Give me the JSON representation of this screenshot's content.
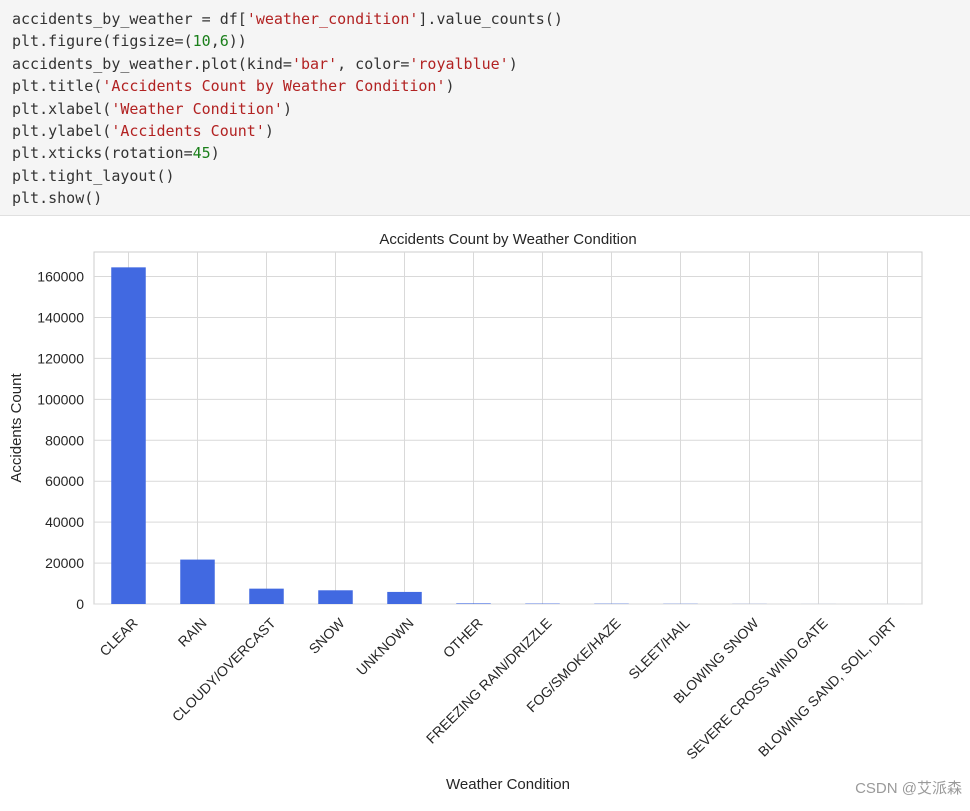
{
  "code": {
    "lines": [
      [
        [
          "t",
          "accidents_by_weather = df["
        ],
        [
          "s",
          "'weather_condition'"
        ],
        [
          "t",
          "].value_counts()"
        ]
      ],
      [
        [
          "t",
          "plt.figure(figsize=("
        ],
        [
          "n",
          "10"
        ],
        [
          "t",
          ","
        ],
        [
          "n",
          "6"
        ],
        [
          "t",
          "))"
        ]
      ],
      [
        [
          "t",
          "accidents_by_weather.plot(kind="
        ],
        [
          "s",
          "'bar'"
        ],
        [
          "t",
          ", color="
        ],
        [
          "s",
          "'royalblue'"
        ],
        [
          "t",
          ")"
        ]
      ],
      [
        [
          "t",
          "plt.title("
        ],
        [
          "s",
          "'Accidents Count by Weather Condition'"
        ],
        [
          "t",
          ")"
        ]
      ],
      [
        [
          "t",
          "plt.xlabel("
        ],
        [
          "s",
          "'Weather Condition'"
        ],
        [
          "t",
          ")"
        ]
      ],
      [
        [
          "t",
          "plt.ylabel("
        ],
        [
          "s",
          "'Accidents Count'"
        ],
        [
          "t",
          ")"
        ]
      ],
      [
        [
          "t",
          "plt.xticks(rotation="
        ],
        [
          "n",
          "45"
        ],
        [
          "t",
          ")"
        ]
      ],
      [
        [
          "t",
          "plt.tight_layout()"
        ]
      ],
      [
        [
          "t",
          "plt.show()"
        ]
      ]
    ]
  },
  "chart_data": {
    "type": "bar",
    "title": "Accidents Count by Weather Condition",
    "xlabel": "Weather Condition",
    "ylabel": "Accidents Count",
    "categories": [
      "CLEAR",
      "RAIN",
      "CLOUDY/OVERCAST",
      "SNOW",
      "UNKNOWN",
      "OTHER",
      "FREEZING RAIN/DRIZZLE",
      "FOG/SMOKE/HAZE",
      "SLEET/HAIL",
      "BLOWING SNOW",
      "SEVERE CROSS WIND GATE",
      "BLOWING SAND, SOIL, DIRT"
    ],
    "values": [
      164500,
      21700,
      7500,
      6700,
      5900,
      300,
      200,
      150,
      100,
      50,
      20,
      10
    ],
    "ylim": [
      0,
      172000
    ],
    "yticks": [
      0,
      20000,
      40000,
      60000,
      80000,
      100000,
      120000,
      140000,
      160000
    ],
    "ytick_labels": [
      "0",
      "20000",
      "40000",
      "60000",
      "80000",
      "100000",
      "120000",
      "140000",
      "160000"
    ],
    "color": "#4169e1",
    "grid": true,
    "xtick_rotation": 45
  },
  "watermark": "CSDN @艾派森"
}
